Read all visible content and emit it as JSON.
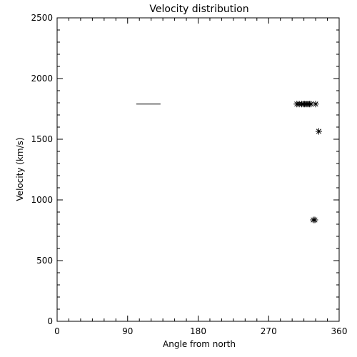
{
  "chart_data": {
    "type": "scatter",
    "title": "Velocity distribution",
    "xlabel": "Angle from north",
    "ylabel": "Velocity (km/s)",
    "xlim": [
      0,
      360
    ],
    "ylim": [
      0,
      2500
    ],
    "xticks": [
      0,
      90,
      180,
      270,
      360
    ],
    "yticks": [
      0,
      500,
      1000,
      1500,
      2000,
      2500
    ],
    "grid": false,
    "marker": "asterisk",
    "color": "#000000",
    "points": [
      {
        "x": 306,
        "y": 1790
      },
      {
        "x": 309,
        "y": 1790
      },
      {
        "x": 312,
        "y": 1790
      },
      {
        "x": 314,
        "y": 1790
      },
      {
        "x": 316,
        "y": 1790
      },
      {
        "x": 318,
        "y": 1790
      },
      {
        "x": 320,
        "y": 1790
      },
      {
        "x": 322,
        "y": 1790
      },
      {
        "x": 324,
        "y": 1790
      },
      {
        "x": 330,
        "y": 1790
      },
      {
        "x": 334,
        "y": 1565
      },
      {
        "x": 327,
        "y": 835
      },
      {
        "x": 329,
        "y": 835
      }
    ],
    "segments": [
      {
        "x": [
          101,
          132
        ],
        "y": [
          1790,
          1790
        ]
      }
    ]
  }
}
